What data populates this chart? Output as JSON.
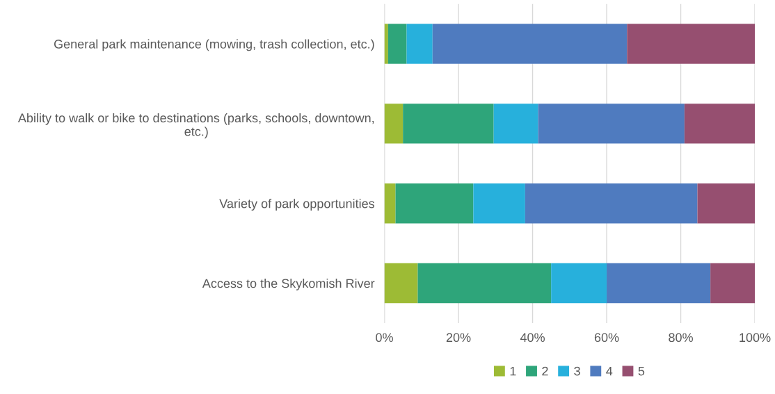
{
  "chart_data": {
    "type": "bar",
    "orientation": "horizontal",
    "stacked": true,
    "categories": [
      "General park maintenance (mowing, trash collection, etc.)",
      "Ability to walk or bike to destinations (parks, schools, downtown, etc.)",
      "Variety of park opportunities",
      "Access to the Skykomish River"
    ],
    "series": [
      {
        "name": "1",
        "color": "#9dbb35",
        "values": [
          1,
          5,
          3,
          9
        ]
      },
      {
        "name": "2",
        "color": "#2ea57a",
        "values": [
          5,
          24.5,
          21,
          36
        ]
      },
      {
        "name": "3",
        "color": "#27b0dc",
        "values": [
          7,
          12,
          14,
          15
        ]
      },
      {
        "name": "4",
        "color": "#4f7bbf",
        "values": [
          52.5,
          39.5,
          46.5,
          28
        ]
      },
      {
        "name": "5",
        "color": "#964f70",
        "values": [
          34.5,
          19,
          15.5,
          12
        ]
      }
    ],
    "xlim": [
      0,
      100
    ],
    "xticks": [
      {
        "value": 0,
        "label": "0%"
      },
      {
        "value": 20,
        "label": "20%"
      },
      {
        "value": 40,
        "label": "40%"
      },
      {
        "value": 60,
        "label": "60%"
      },
      {
        "value": 80,
        "label": "80%"
      },
      {
        "value": 100,
        "label": "100%"
      }
    ],
    "grid": "x",
    "legend": "bottom"
  }
}
